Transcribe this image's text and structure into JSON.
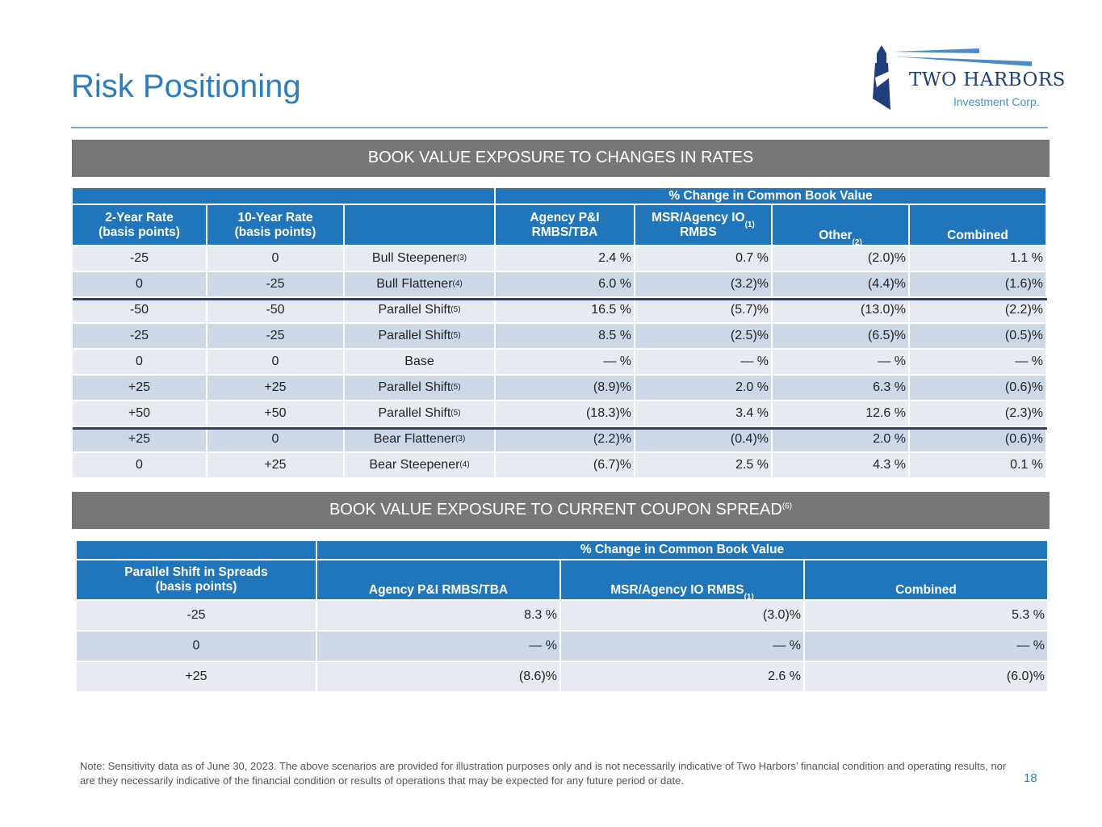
{
  "title": "Risk Positioning",
  "logo": {
    "name": "TWO HARBORS",
    "sub": "Investment Corp."
  },
  "section1": {
    "banner": "BOOK VALUE EXPOSURE TO CHANGES IN RATES",
    "group_header": "% Change in Common Book Value",
    "headers": [
      {
        "label": "2-Year Rate\n(basis points)"
      },
      {
        "label": "10-Year Rate\n(basis points)"
      },
      {
        "label": ""
      },
      {
        "label": "Agency P&I\nRMBS/TBA"
      },
      {
        "label": "MSR/Agency IO\nRMBS",
        "note": "(1)"
      },
      {
        "label": "Other",
        "note": "(2)"
      },
      {
        "label": "Combined"
      }
    ],
    "rows": [
      {
        "two": "-25",
        "ten": "0",
        "scenario": "Bull Steepener",
        "note": "(3)",
        "agency": "2.4 %",
        "msr": "0.7 %",
        "other": "(2.0)%",
        "combined": "1.1 %"
      },
      {
        "two": "0",
        "ten": "-25",
        "scenario": "Bull Flattener",
        "note": "(4)",
        "agency": "6.0 %",
        "msr": "(3.2)%",
        "other": "(4.4)%",
        "combined": "(1.6)%"
      },
      {
        "two": "-50",
        "ten": "-50",
        "scenario": "Parallel Shift",
        "note": "(5)",
        "agency": "16.5 %",
        "msr": "(5.7)%",
        "other": "(13.0)%",
        "combined": "(2.2)%"
      },
      {
        "two": "-25",
        "ten": "-25",
        "scenario": "Parallel Shift",
        "note": "(5)",
        "agency": "8.5 %",
        "msr": "(2.5)%",
        "other": "(6.5)%",
        "combined": "(0.5)%"
      },
      {
        "two": "0",
        "ten": "0",
        "scenario": "Base",
        "note": "",
        "agency": "— %",
        "msr": "— %",
        "other": "— %",
        "combined": "— %"
      },
      {
        "two": "+25",
        "ten": "+25",
        "scenario": "Parallel Shift",
        "note": "(5)",
        "agency": "(8.9)%",
        "msr": "2.0 %",
        "other": "6.3 %",
        "combined": "(0.6)%"
      },
      {
        "two": "+50",
        "ten": "+50",
        "scenario": "Parallel Shift",
        "note": "(5)",
        "agency": "(18.3)%",
        "msr": "3.4 %",
        "other": "12.6 %",
        "combined": "(2.3)%"
      },
      {
        "two": "+25",
        "ten": "0",
        "scenario": "Bear Flattener",
        "note": "(3)",
        "agency": "(2.2)%",
        "msr": "(0.4)%",
        "other": "2.0 %",
        "combined": "(0.6)%"
      },
      {
        "two": "0",
        "ten": "+25",
        "scenario": "Bear Steepener",
        "note": "(4)",
        "agency": "(6.7)%",
        "msr": "2.5 %",
        "other": "4.3 %",
        "combined": "0.1 %"
      }
    ]
  },
  "section2": {
    "banner": "BOOK VALUE EXPOSURE TO CURRENT COUPON SPREAD",
    "banner_note": "(6)",
    "group_header": "% Change in Common Book Value",
    "headers": [
      {
        "label": "Parallel Shift in Spreads\n(basis points)"
      },
      {
        "label": "Agency P&I RMBS/TBA"
      },
      {
        "label": "MSR/Agency IO RMBS",
        "note": "(1)"
      },
      {
        "label": "Combined"
      }
    ],
    "rows": [
      {
        "shift": "-25",
        "agency": "8.3 %",
        "msr": "(3.0)%",
        "combined": "5.3 %"
      },
      {
        "shift": "0",
        "agency": "— %",
        "msr": "— %",
        "combined": "— %"
      },
      {
        "shift": "+25",
        "agency": "(8.6)%",
        "msr": "2.6 %",
        "combined": "(6.0)%"
      }
    ]
  },
  "note": "Note: Sensitivity data as of June 30, 2023. The above scenarios are provided for illustration purposes only and is not necessarily indicative of Two Harbors’ financial condition and operating results, nor are they necessarily indicative of the financial condition or results of operations that may be expected for any future period or date.",
  "page_number": "18"
}
